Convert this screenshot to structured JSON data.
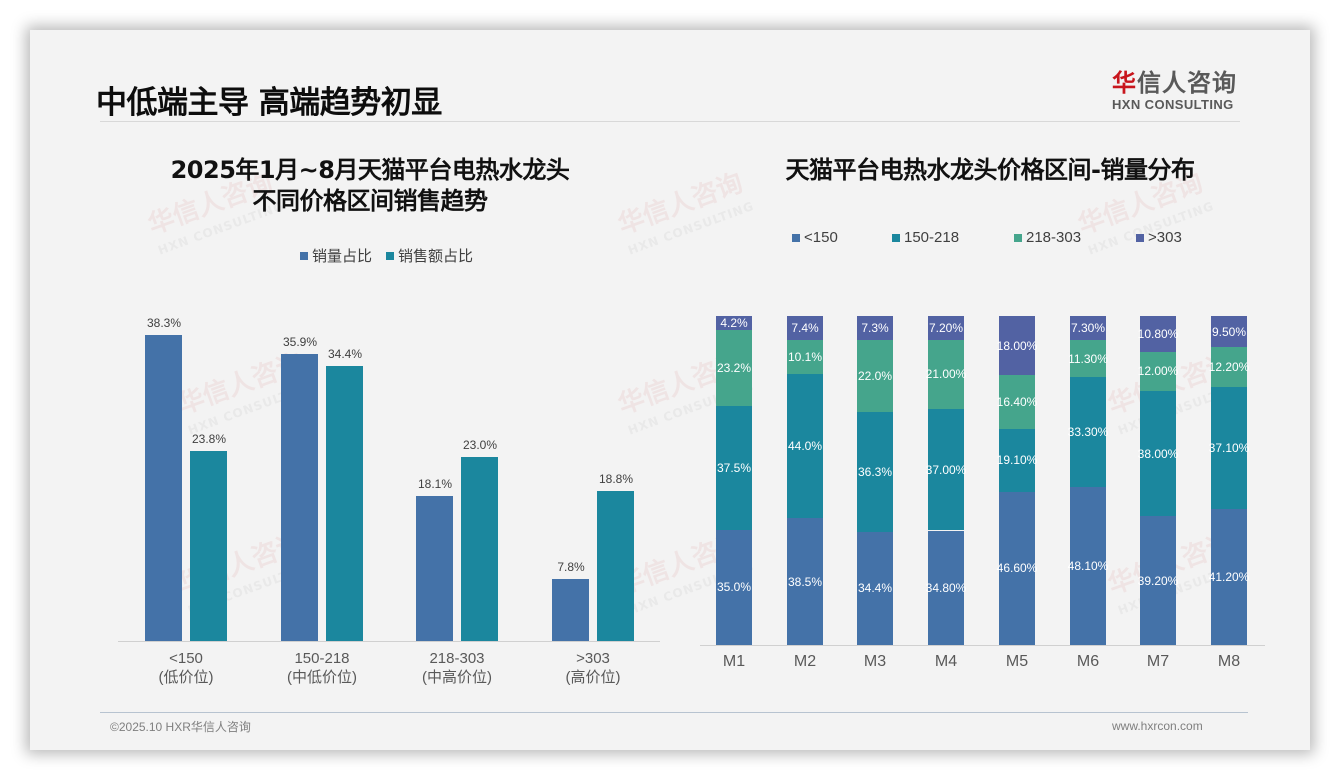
{
  "page": {
    "title": "中低端主导 高端趋势初显",
    "logo": {
      "mark": "华",
      "name_rest": "信人咨询",
      "english": "HXN CONSULTING"
    },
    "footer": {
      "copyright": "©2025.10 HXR华信人咨询",
      "website": "www.hxrcon.com"
    },
    "watermark": {
      "cn": "华信人咨询",
      "en": "HXN CONSULTING"
    }
  },
  "colors": {
    "background": "#f3f3f3",
    "blue": "#4472a8",
    "teal": "#1b879e",
    "green": "#45a58c",
    "purple": "#5262a3",
    "logo_red": "#c8161d"
  },
  "chart_data": [
    {
      "type": "bar",
      "title_line1": "2025年1月~8月天猫平台电热水龙头",
      "title_line2": "不同价格区间销售趋势",
      "legend_position": "top",
      "grid": false,
      "categories": [
        "<150",
        "150-218",
        "218-303",
        ">303"
      ],
      "category_sublabels": [
        "(低价位)",
        "(中低价位)",
        "(中高价位)",
        "(高价位)"
      ],
      "series": [
        {
          "name": "销量占比",
          "color": "#4472a8",
          "values": [
            38.3,
            35.9,
            18.1,
            7.8
          ],
          "labels": [
            "38.3%",
            "35.9%",
            "18.1%",
            "7.8%"
          ]
        },
        {
          "name": "销售额占比",
          "color": "#1b879e",
          "values": [
            23.8,
            34.4,
            23.0,
            18.8
          ],
          "labels": [
            "23.8%",
            "34.4%",
            "23.0%",
            "18.8%"
          ]
        }
      ],
      "xlabel": "",
      "ylabel": "",
      "ylim": [
        0,
        40
      ]
    },
    {
      "type": "bar",
      "stacked": true,
      "percent_stacked": true,
      "title": "天猫平台电热水龙头价格区间-销量分布",
      "legend_position": "top",
      "grid": false,
      "categories": [
        "M1",
        "M2",
        "M3",
        "M4",
        "M5",
        "M6",
        "M7",
        "M8"
      ],
      "series": [
        {
          "name": "<150",
          "color": "#4472a8",
          "values": [
            35.0,
            38.5,
            34.4,
            34.8,
            46.6,
            48.1,
            39.2,
            41.2
          ],
          "labels": [
            "35.0%",
            "38.5%",
            "34.4%",
            "34.80%",
            "46.60%",
            "48.10%",
            "39.20%",
            "41.20%"
          ]
        },
        {
          "name": "150-218",
          "color": "#1b879e",
          "values": [
            37.5,
            44.0,
            36.3,
            37.0,
            19.1,
            33.3,
            38.0,
            37.1
          ],
          "labels": [
            "37.5%",
            "44.0%",
            "36.3%",
            "37.00%",
            "19.10%",
            "33.30%",
            "38.00%",
            "37.10%"
          ]
        },
        {
          "name": "218-303",
          "color": "#45a58c",
          "values": [
            23.2,
            10.1,
            22.0,
            21.0,
            16.4,
            11.3,
            12.0,
            12.2
          ],
          "labels": [
            "23.2%",
            "10.1%",
            "22.0%",
            "21.00%",
            "16.40%",
            "11.30%",
            "12.00%",
            "12.20%"
          ]
        },
        {
          "name": ">303",
          "color": "#5262a3",
          "values": [
            4.2,
            7.4,
            7.3,
            7.2,
            18.0,
            7.3,
            10.8,
            9.5
          ],
          "labels": [
            "4.2%",
            "7.4%",
            "7.3%",
            "7.20%",
            "18.00%",
            "7.30%",
            "10.80%",
            "9.50%"
          ]
        }
      ],
      "xlabel": "",
      "ylabel": "",
      "ylim": [
        0,
        100
      ]
    }
  ]
}
